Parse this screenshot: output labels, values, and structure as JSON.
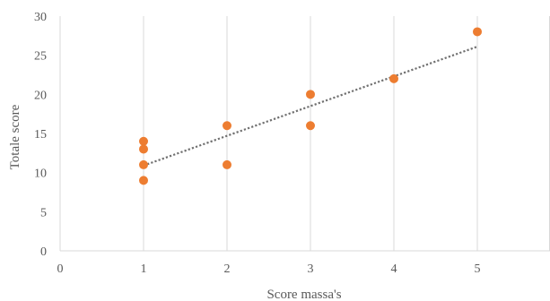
{
  "chart_data": {
    "type": "scatter",
    "title": "",
    "xlabel": "Score massa's",
    "ylabel": "Totale score",
    "xlim": [
      0,
      6
    ],
    "ylim": [
      0,
      30
    ],
    "x_ticks": [
      0,
      1,
      2,
      3,
      4,
      5
    ],
    "y_ticks": [
      0,
      5,
      10,
      15,
      20,
      25,
      30
    ],
    "grid": {
      "vertical": true,
      "horizontal": false
    },
    "legend": "none",
    "series": [
      {
        "points": [
          {
            "x": 1,
            "y": 14
          },
          {
            "x": 1,
            "y": 13
          },
          {
            "x": 1,
            "y": 11
          },
          {
            "x": 1,
            "y": 9
          },
          {
            "x": 2,
            "y": 16
          },
          {
            "x": 2,
            "y": 11
          },
          {
            "x": 3,
            "y": 20
          },
          {
            "x": 3,
            "y": 16
          },
          {
            "x": 4,
            "y": 22
          },
          {
            "x": 5,
            "y": 28
          }
        ],
        "color": "#ED7D31"
      }
    ],
    "trendline": {
      "type": "linear",
      "x_from": 1,
      "x_to": 5,
      "y_from": 10.9,
      "y_to": 26.1,
      "color": "#707070",
      "style": "dotted"
    },
    "colors": {
      "axis": "#D9D9D9",
      "grid": "#D9D9D9",
      "text": "#595959"
    }
  }
}
